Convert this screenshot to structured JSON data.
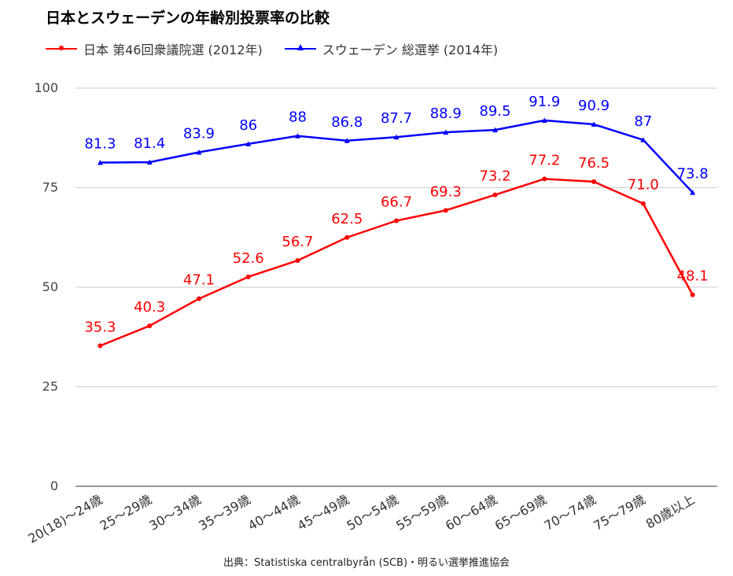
{
  "chart_data": {
    "type": "line",
    "title": "日本とスウェーデンの年齢別投票率の比較",
    "categories": [
      "20(18)〜24歳",
      "25〜29歳",
      "30〜34歳",
      "35〜39歳",
      "40〜44歳",
      "45〜49歳",
      "50〜54歳",
      "55〜59歳",
      "60〜64歳",
      "65〜69歳",
      "70〜74歳",
      "75〜79歳",
      "80歳以上"
    ],
    "series": [
      {
        "name": "日本 第46回衆議院選 (2012年)",
        "color": "#ff0000",
        "marker": "circle",
        "values": [
          35.3,
          40.3,
          47.1,
          52.6,
          56.7,
          62.5,
          66.7,
          69.3,
          73.2,
          77.2,
          76.5,
          71.0,
          48.1
        ],
        "labels": [
          "35.3",
          "40.3",
          "47.1",
          "52.6",
          "56.7",
          "62.5",
          "66.7",
          "69.3",
          "73.2",
          "77.2",
          "76.5",
          "71.0",
          "48.1"
        ]
      },
      {
        "name": "スウェーデン 総選挙 (2014年)",
        "color": "#0000ff",
        "marker": "triangle",
        "values": [
          81.3,
          81.4,
          83.9,
          86,
          88,
          86.8,
          87.7,
          88.9,
          89.5,
          91.9,
          90.9,
          87,
          73.8
        ],
        "labels": [
          "81.3",
          "81.4",
          "83.9",
          "86",
          "88",
          "86.8",
          "87.7",
          "88.9",
          "89.5",
          "91.9",
          "90.9",
          "87",
          "73.8"
        ]
      }
    ],
    "ylim": [
      0,
      100
    ],
    "yticks": [
      "0",
      "25",
      "50",
      "75",
      "100"
    ],
    "ytick_values": [
      0,
      25,
      50,
      75,
      100
    ],
    "grid": true,
    "legend_position": "top-left",
    "xlabel": "",
    "ylabel": ""
  },
  "source": "出典：Statistiska centralbyrån (SCB)・明るい選挙推進協会"
}
